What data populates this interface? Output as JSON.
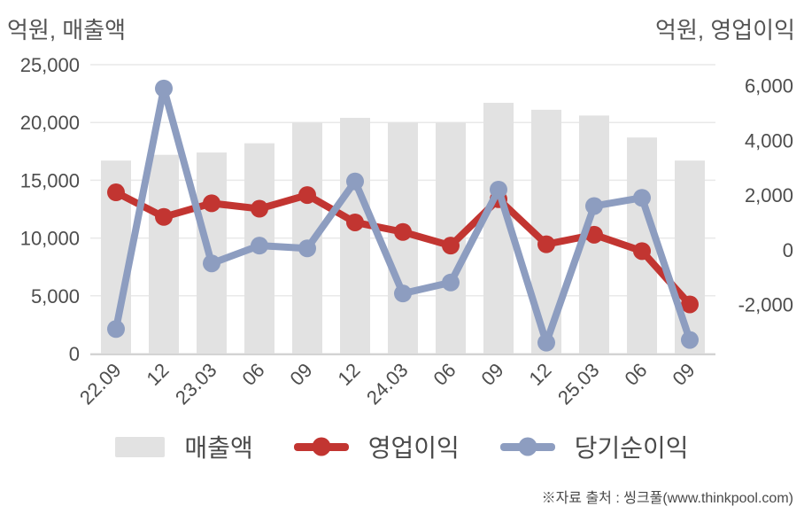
{
  "titles": {
    "left_axis_unit": "억원, 매출액",
    "right_axis_unit": "억원, 영업이익"
  },
  "legend": {
    "items": [
      {
        "label": "매출액",
        "type": "bar",
        "color": "#e2e2e2"
      },
      {
        "label": "영업이익",
        "type": "line",
        "color": "#c23531"
      },
      {
        "label": "당기순이익",
        "type": "line",
        "color": "#8d9dc0"
      }
    ]
  },
  "footer": {
    "source_note": "※자료 출처 : 씽크풀(www.thinkpool.com)"
  },
  "colors": {
    "bar": "#e2e2e2",
    "operating_profit_line": "#c23531",
    "net_income_line": "#8d9dc0",
    "grid_line": "#e9e9e9",
    "axis_line": "#c9c9c9",
    "tick_text": "#4d4d4d",
    "title_text": "#555555"
  },
  "chart_data": {
    "type": "bar",
    "subtype": "combo-bar-line-dual-axis",
    "categories": [
      "22.09",
      "12",
      "23.03",
      "06",
      "09",
      "12",
      "24.03",
      "06",
      "09",
      "12",
      "25.03",
      "06",
      "09"
    ],
    "series": [
      {
        "name": "매출액",
        "key": "revenue",
        "type": "bar",
        "axis": "left",
        "color": "#e2e2e2",
        "values": [
          16700,
          17200,
          17400,
          18200,
          20000,
          20400,
          20000,
          20000,
          21700,
          21100,
          20600,
          18700,
          16700
        ]
      },
      {
        "name": "영업이익",
        "key": "operating-profit",
        "type": "line",
        "axis": "right",
        "color": "#c23531",
        "values": [
          2100,
          1200,
          1700,
          1500,
          2000,
          1000,
          650,
          150,
          1850,
          200,
          550,
          -50,
          -2000
        ]
      },
      {
        "name": "당기순이익",
        "key": "net-income",
        "type": "line",
        "axis": "right",
        "color": "#8d9dc0",
        "values": [
          -2900,
          5900,
          -500,
          150,
          50,
          2500,
          -1600,
          -1200,
          2200,
          -3400,
          1600,
          1900,
          -3300
        ]
      }
    ],
    "left_axis": {
      "label": "억원, 매출액",
      "min": 0,
      "max": 25000,
      "ticks": [
        0,
        5000,
        10000,
        15000,
        20000,
        25000
      ]
    },
    "right_axis": {
      "label": "억원, 영업이익",
      "min": -3800,
      "max": 6770,
      "ticks": [
        6000,
        4000,
        2000,
        0,
        -2000
      ]
    },
    "grid": true,
    "legend_position": "bottom",
    "x_tick_rotation": -45
  }
}
